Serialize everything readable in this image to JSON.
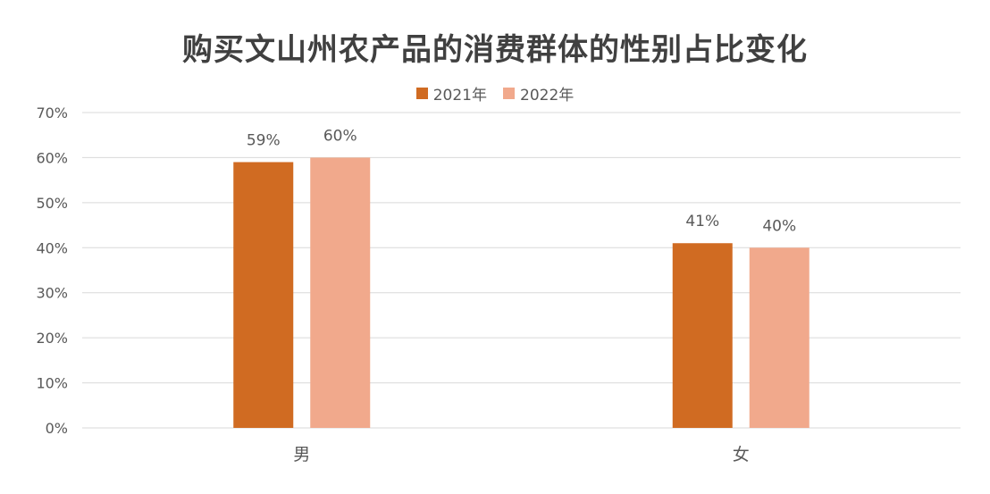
{
  "chart_data": {
    "type": "bar",
    "title": "购买文山州农产品的消费群体的性别占比变化",
    "categories": [
      "男",
      "女"
    ],
    "series": [
      {
        "name": "2021年",
        "values": [
          59,
          41
        ],
        "labels": [
          "59%",
          "41%"
        ],
        "color": "#D06B22"
      },
      {
        "name": "2022年",
        "values": [
          60,
          40
        ],
        "labels": [
          "60%",
          "40%"
        ],
        "color": "#F1A98C"
      }
    ],
    "ylim": [
      0,
      70
    ],
    "yticks": [
      0,
      10,
      20,
      30,
      40,
      50,
      60,
      70
    ],
    "ytick_labels": [
      "0%",
      "10%",
      "20%",
      "30%",
      "40%",
      "50%",
      "60%",
      "70%"
    ],
    "grid": true,
    "legend_position": "top-center",
    "gridline_color": "#D9D9D9"
  }
}
